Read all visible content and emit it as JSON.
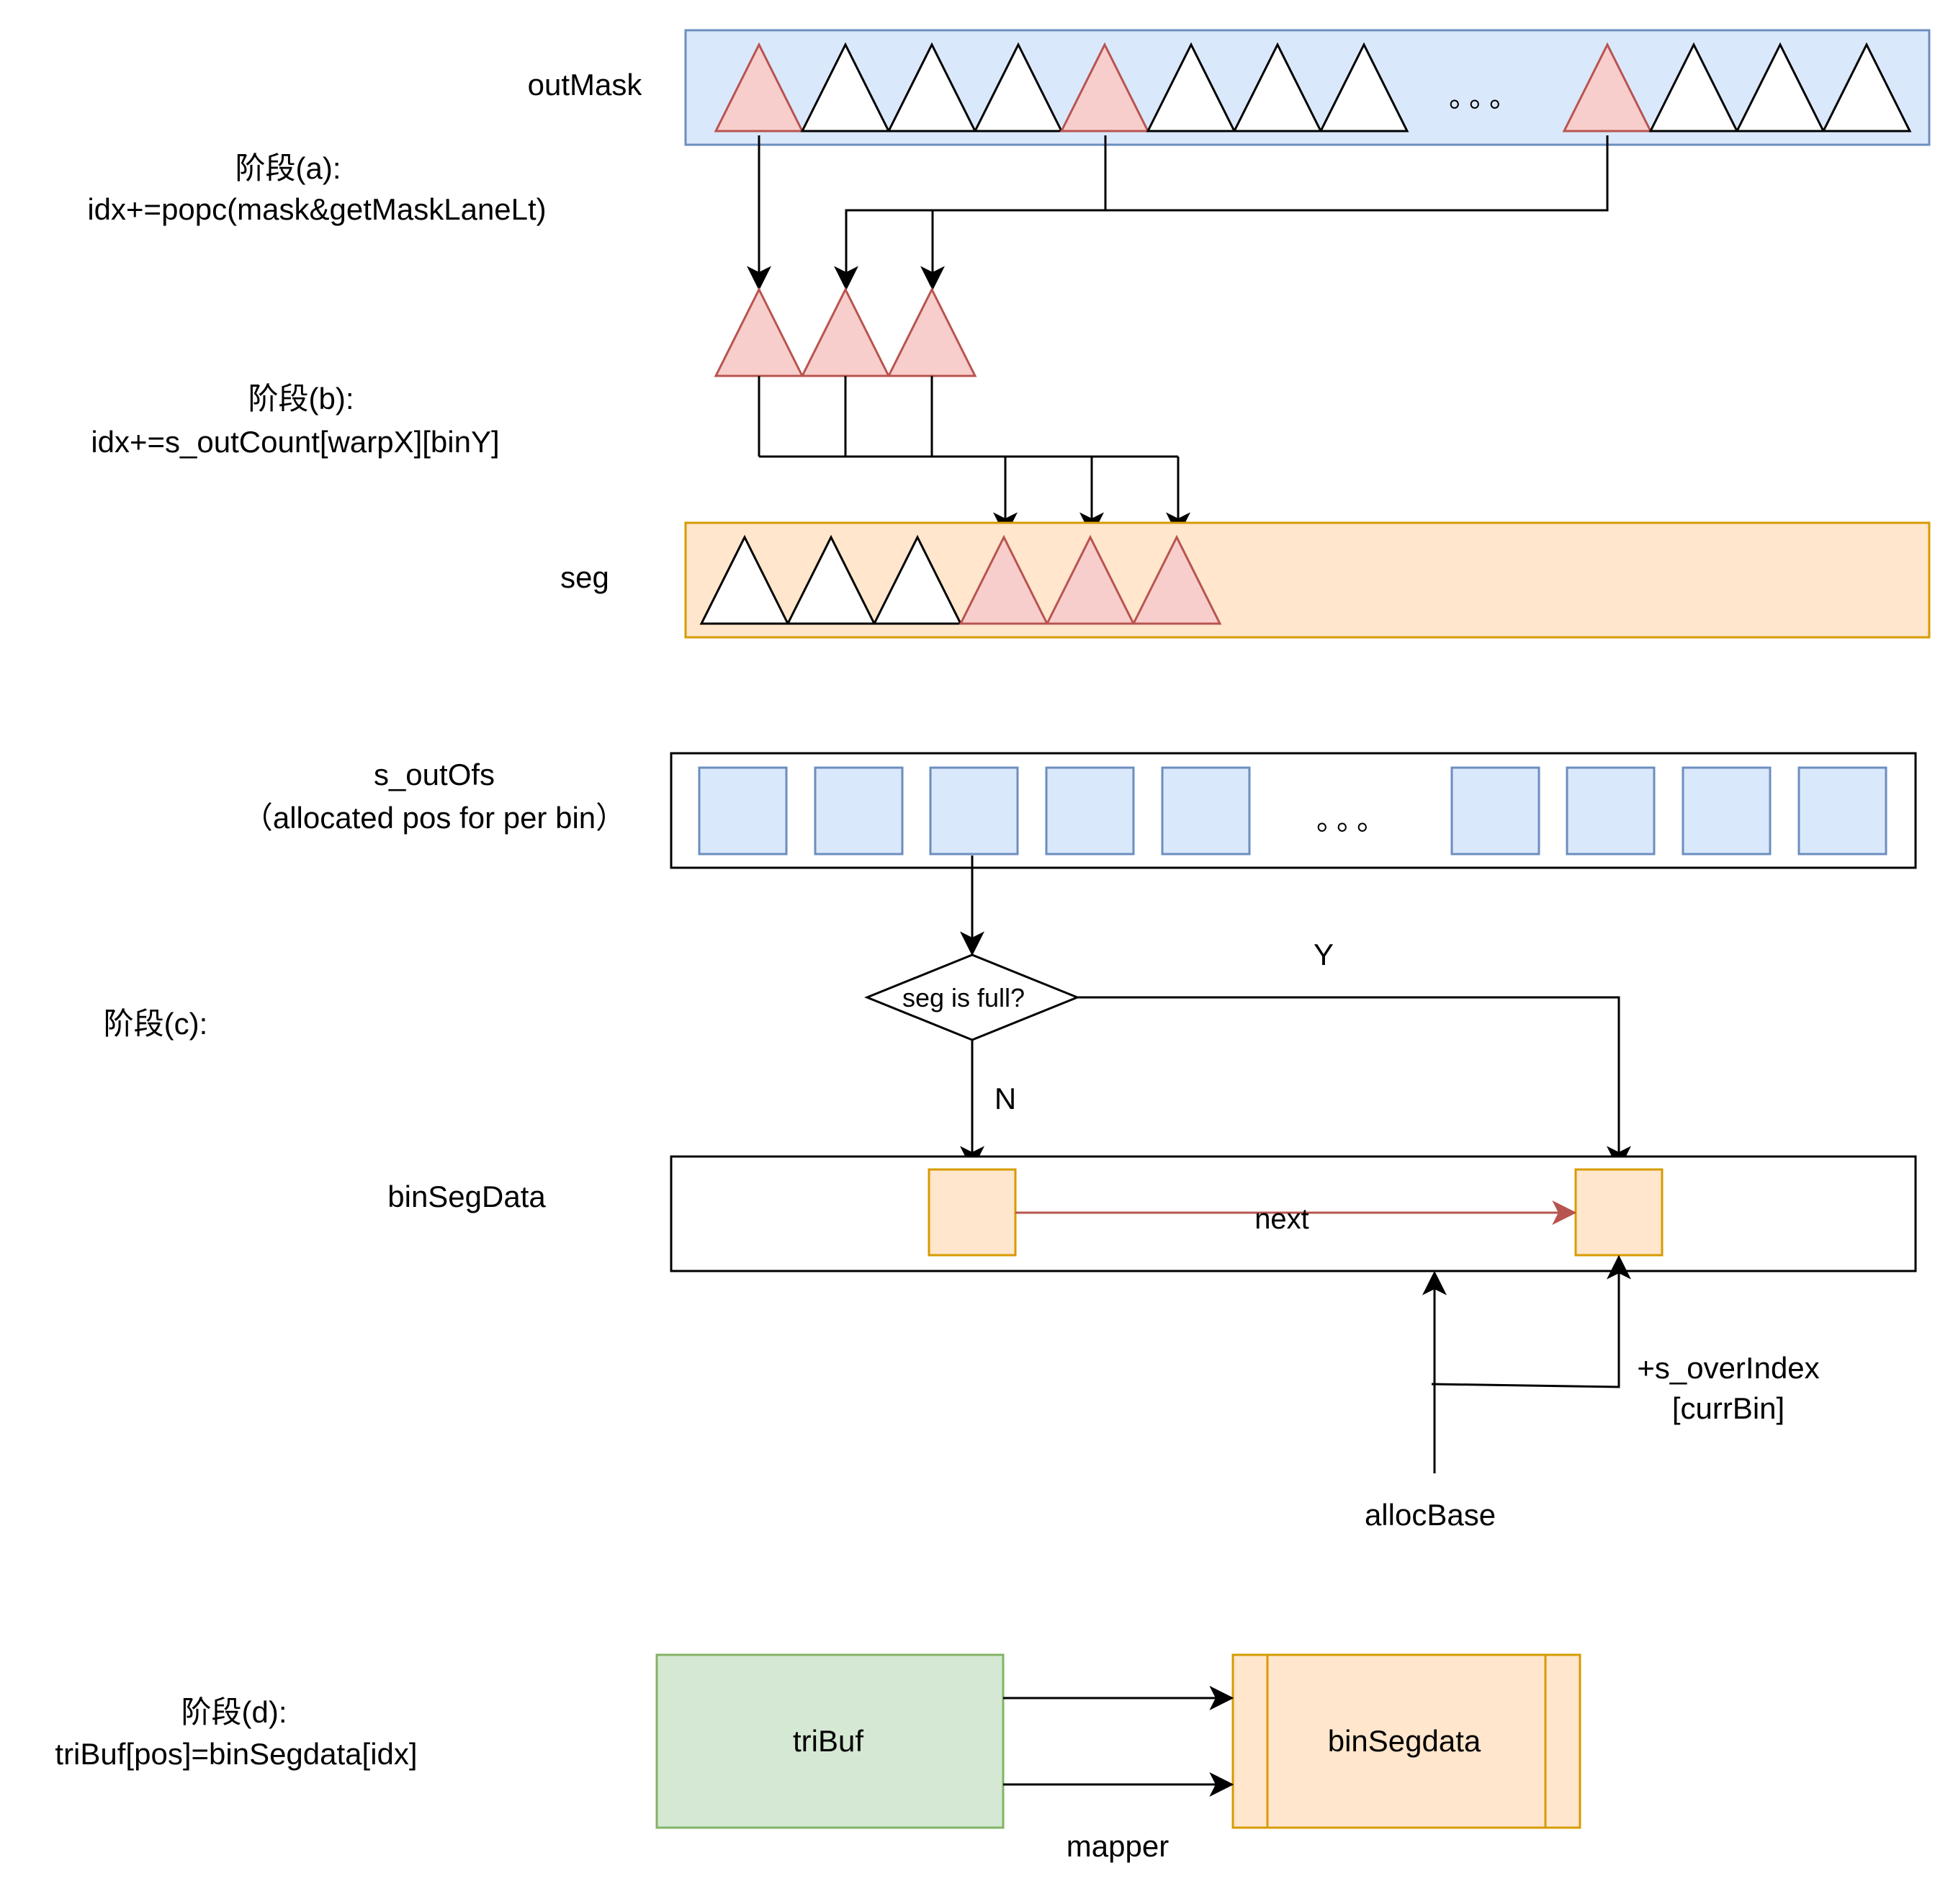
{
  "labels": {
    "out_mask": "outMask",
    "stage_a_title": "阶段(a):",
    "stage_a_formula": "idx+=popc(mask&getMaskLaneLt)",
    "stage_b_title": "阶段(b):",
    "stage_b_formula": "idx+=s_outCount[warpX][binY]",
    "seg": "seg",
    "s_out_ofs": "s_outOfs",
    "s_out_ofs_note": "（allocated pos for per bin）",
    "stage_c_title": "阶段(c):",
    "decision": "seg is full?",
    "yes": "Y",
    "no": "N",
    "bin_seg_data": "binSegData",
    "next": "next",
    "over_index_line1": "+s_overIndex",
    "over_index_line2": "[currBin]",
    "alloc_base": "allocBase",
    "stage_d_title": "阶段(d):",
    "stage_d_formula": "triBuf[pos]=binSegdata[idx]",
    "tri_buf": "triBuf",
    "bin_segdata_box": "binSegdata",
    "mapper": "mapper",
    "ellipsis_mask": "。。。",
    "ellipsis_ofs": "。。。"
  },
  "colors": {
    "blue_fill": "#dae8fc",
    "blue_stroke": "#6c8ebf",
    "orange_fill": "#ffe6cc",
    "orange_stroke": "#d79b00",
    "red_fill": "#f8cecc",
    "red_stroke": "#b85450",
    "green_fill": "#d5e8d4",
    "green_stroke": "#82b366",
    "line": "#000000"
  },
  "out_mask_cells": [
    {
      "highlighted": true
    },
    {
      "highlighted": false
    },
    {
      "highlighted": false
    },
    {
      "highlighted": false
    },
    {
      "highlighted": true
    },
    {
      "highlighted": false
    },
    {
      "highlighted": false
    },
    {
      "highlighted": false
    },
    {
      "ellipsis": true
    },
    {
      "highlighted": true
    },
    {
      "highlighted": false
    },
    {
      "highlighted": false
    },
    {
      "highlighted": false
    }
  ],
  "seg_cells": [
    {
      "highlighted": false
    },
    {
      "highlighted": false
    },
    {
      "highlighted": false
    },
    {
      "highlighted": true
    },
    {
      "highlighted": true
    },
    {
      "highlighted": true
    }
  ],
  "s_out_ofs_cells": [
    {
      "ellipsis": false
    },
    {
      "ellipsis": false
    },
    {
      "ellipsis": false
    },
    {
      "ellipsis": false
    },
    {
      "ellipsis": false
    },
    {
      "ellipsis": true
    },
    {
      "ellipsis": false
    },
    {
      "ellipsis": false
    },
    {
      "ellipsis": false
    },
    {
      "ellipsis": false
    }
  ]
}
